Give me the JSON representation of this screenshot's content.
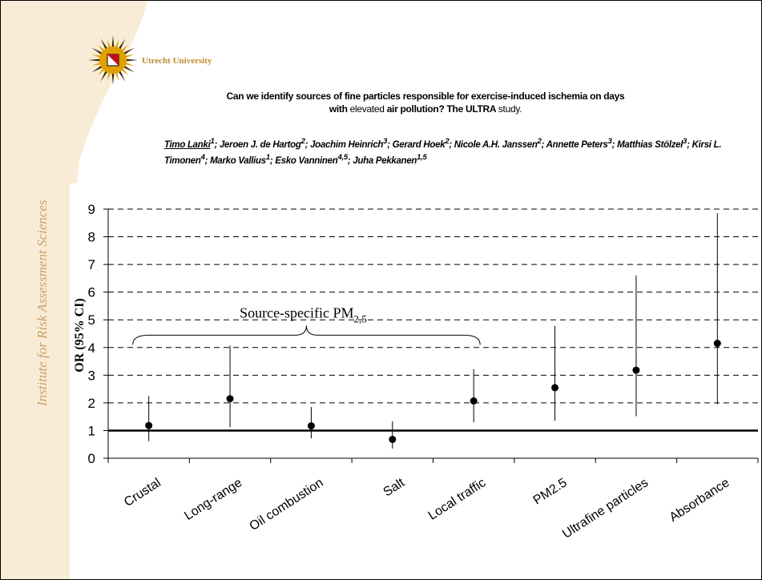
{
  "sidebar": {
    "title": "Institute for Risk Assessment Sciences"
  },
  "header": {
    "university": "Utrecht University",
    "title_line1": "Can we identify sources of fine particles responsible for exercise-induced ischemia on days",
    "title_line2_bold_a": "with ",
    "title_line2_plain_a": "elevated ",
    "title_line2_bold_b": "air pollution? The ULTRA ",
    "title_line2_plain_b": "study.",
    "authors_first": "Timo Lanki",
    "authors_first_sup": "1",
    "authors_rest_1": "; Jeroen J. de Hartog",
    "authors_rest_1_sup": "2",
    "authors_rest_2": "; Joachim Heinrich",
    "authors_rest_2_sup": "3",
    "authors_rest_3": "; Gerard Hoek",
    "authors_rest_3_sup": "2",
    "authors_rest_4": "; Nicole A.H. Janssen",
    "authors_rest_4_sup": "2",
    "authors_rest_5": "; Annette Peters",
    "authors_rest_5_sup": "3",
    "authors_rest_6": "; Matthias Stölzel",
    "authors_rest_6_sup": "3",
    "authors_rest_7": "; Kirsi L. Timonen",
    "authors_rest_7_sup": "4",
    "authors_rest_8": "; Marko Vallius",
    "authors_rest_8_sup": "1",
    "authors_rest_9": "; Esko Vanninen",
    "authors_rest_9_sup": "4,5",
    "authors_rest_10": "; Juha Pekkanen",
    "authors_rest_10_sup": "1,5"
  },
  "colors": {
    "band": "#f9ecd6",
    "accent": "#c8a06a",
    "logo_gold": "#e0a000",
    "logo_dark": "#3a2a10",
    "shield_red": "#c01020"
  },
  "chart_data": {
    "type": "scatter",
    "error_bars": true,
    "categories": [
      "Crustal",
      "Long-range",
      "Oil combustion",
      "Salt",
      "Local traffic",
      "PM2.5",
      "Ultrafine particles",
      "Absorbance"
    ],
    "values": [
      1.18,
      2.15,
      1.17,
      0.68,
      2.07,
      2.55,
      3.18,
      4.15
    ],
    "lower": [
      0.62,
      1.12,
      0.72,
      0.35,
      1.3,
      1.35,
      1.52,
      1.95
    ],
    "upper": [
      2.25,
      4.07,
      1.85,
      1.33,
      3.22,
      4.78,
      6.6,
      8.85
    ],
    "ylabel": "OR (95% CI)",
    "ylim": [
      0,
      9
    ],
    "yticks": [
      0,
      1,
      2,
      3,
      4,
      5,
      6,
      7,
      8,
      9
    ],
    "reference_line": 1,
    "grid": "dashed horizontal",
    "annotation": {
      "text": "Source-specific PM",
      "subscript": "2,5",
      "spans": [
        "Crustal",
        "Local traffic"
      ],
      "bracket_at": 4.1
    }
  }
}
